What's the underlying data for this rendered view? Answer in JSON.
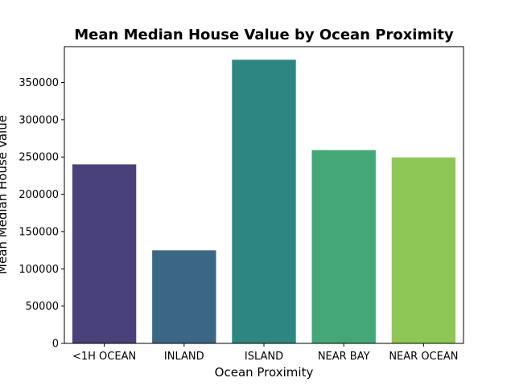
{
  "chart_data": {
    "type": "bar",
    "title": "Mean Median House Value by Ocean Proximity",
    "xlabel": "Ocean Proximity",
    "ylabel": "Mean Median House Value",
    "categories": [
      "<1H OCEAN",
      "INLAND",
      "ISLAND",
      "NEAR BAY",
      "NEAR OCEAN"
    ],
    "values": [
      240084,
      124805,
      380440,
      259212,
      249434
    ],
    "colors": [
      "#48417a",
      "#3b6684",
      "#2e8680",
      "#43a875",
      "#8ec755"
    ],
    "ylim": [
      0,
      398000
    ],
    "yticks": [
      0,
      50000,
      100000,
      150000,
      200000,
      250000,
      300000,
      350000
    ],
    "ytick_labels": [
      "0",
      "50000",
      "100000",
      "150000",
      "200000",
      "250000",
      "300000",
      "350000"
    ],
    "grid": false,
    "legend": "none"
  }
}
